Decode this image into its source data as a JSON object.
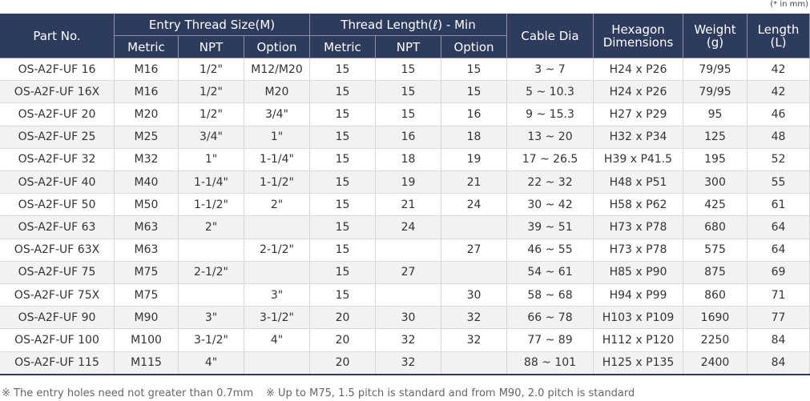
{
  "note": "(* in mm)",
  "header": {
    "part_no": "Part No.",
    "groups": [
      "Entry Thread Size(M)",
      "Thread Length(ℓ) - Min"
    ],
    "subheaders": [
      "Metric",
      "NPT",
      "Option",
      "Metric",
      "NPT",
      "Option"
    ],
    "cable_dia": "Cable Dia",
    "hexagon": "Hexagon\nDimensions",
    "weight": "Weight\n(g)",
    "length": "Length\n(L)"
  },
  "table": {
    "rows": [
      [
        "OS-A2F-UF 16",
        "M16",
        "1/2\"",
        "M12/M20",
        "15",
        "15",
        "15",
        "3 ~ 7",
        "H24 x P26",
        "79/95",
        "42"
      ],
      [
        "OS-A2F-UF 16X",
        "M16",
        "1/2\"",
        "M20",
        "15",
        "15",
        "15",
        "5 ~ 10.3",
        "H24 x P26",
        "79/95",
        "42"
      ],
      [
        "OS-A2F-UF 20",
        "M20",
        "1/2\"",
        "3/4\"",
        "15",
        "15",
        "16",
        "9 ~ 15.3",
        "H27 x P29",
        "95",
        "46"
      ],
      [
        "OS-A2F-UF 25",
        "M25",
        "3/4\"",
        "1\"",
        "15",
        "16",
        "18",
        "13 ~ 20",
        "H32 x P34",
        "125",
        "48"
      ],
      [
        "OS-A2F-UF 32",
        "M32",
        "1\"",
        "1-1/4\"",
        "15",
        "18",
        "19",
        "17 ~ 26.5",
        "H39 x P41.5",
        "195",
        "52"
      ],
      [
        "OS-A2F-UF 40",
        "M40",
        "1-1/4\"",
        "1-1/2\"",
        "15",
        "19",
        "21",
        "22 ~ 32",
        "H48 x P51",
        "300",
        "55"
      ],
      [
        "OS-A2F-UF 50",
        "M50",
        "1-1/2\"",
        "2\"",
        "15",
        "21",
        "24",
        "30 ~ 42",
        "H58 x P62",
        "425",
        "61"
      ],
      [
        "OS-A2F-UF 63",
        "M63",
        "2\"",
        null,
        "15",
        "24",
        null,
        "39 ~ 51",
        "H73 x P78",
        "680",
        "64"
      ],
      [
        "OS-A2F-UF 63X",
        "M63",
        null,
        "2-1/2\"",
        "15",
        null,
        "27",
        "46 ~ 55",
        "H73 x P78",
        "575",
        "64"
      ],
      [
        "OS-A2F-UF 75",
        "M75",
        "2-1/2\"",
        null,
        "15",
        "27",
        null,
        "54 ~ 61",
        "H85 x P90",
        "875",
        "69"
      ],
      [
        "OS-A2F-UF 75X",
        "M75",
        null,
        "3\"",
        "15",
        null,
        "30",
        "58 ~ 68",
        "H94 x P99",
        "860",
        "71"
      ],
      [
        "OS-A2F-UF 90",
        "M90",
        "3\"",
        "3-1/2\"",
        "20",
        "30",
        "32",
        "66 ~ 78",
        "H103 x P109",
        "1690",
        "77"
      ],
      [
        "OS-A2F-UF 100",
        "M100",
        "3-1/2\"",
        "4\"",
        "20",
        "32",
        "32",
        "77 ~ 89",
        "H112 x P120",
        "2250",
        "84"
      ],
      [
        "OS-A2F-UF 115",
        "M115",
        "4\"",
        null,
        "20",
        "32",
        null,
        "88 ~ 101",
        "H125 x P135",
        "2400",
        "84"
      ]
    ]
  },
  "footnotes": [
    "※ The entry holes need not greater than 0.7mm",
    "※ Up to M75, 1.5 pitch is standard and from M90, 2.0 pitch is standard"
  ]
}
